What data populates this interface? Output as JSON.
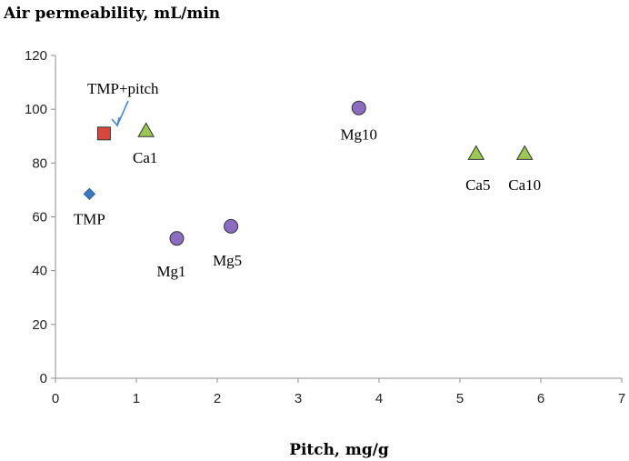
{
  "chart_data": {
    "type": "scatter",
    "title": "Air permeability, mL/min",
    "xlabel": "Pitch, mg/g",
    "ylabel": "Air permeability, mL/min",
    "xlim": [
      0,
      7
    ],
    "ylim": [
      0,
      120
    ],
    "xticks": [
      0,
      1,
      2,
      3,
      4,
      5,
      6,
      7
    ],
    "yticks": [
      0,
      20,
      40,
      60,
      80,
      100,
      120
    ],
    "grid": false,
    "colors": {
      "TMP": "#3a78c2",
      "TMP+pitch": "#d9463e",
      "Ca": "#9bc855",
      "Mg": "#8a6cc0"
    },
    "points": [
      {
        "name": "TMP",
        "label": "TMP",
        "series": "TMP",
        "marker": "diamond",
        "x": 0.42,
        "y": 68.5
      },
      {
        "name": "TMP+pitch",
        "label": "",
        "series": "TMP+pitch",
        "marker": "square",
        "x": 0.6,
        "y": 91
      },
      {
        "name": "Ca1",
        "label": "Ca1",
        "series": "Ca",
        "marker": "triangle",
        "x": 1.12,
        "y": 92
      },
      {
        "name": "Mg1",
        "label": "Mg1",
        "series": "Mg",
        "marker": "circle",
        "x": 1.5,
        "y": 52
      },
      {
        "name": "Mg5",
        "label": "Mg5",
        "series": "Mg",
        "marker": "circle",
        "x": 2.17,
        "y": 56.5
      },
      {
        "name": "Mg10",
        "label": "Mg10",
        "series": "Mg",
        "marker": "circle",
        "x": 3.75,
        "y": 100.5
      },
      {
        "name": "Ca5",
        "label": "Ca5",
        "series": "Ca",
        "marker": "triangle",
        "x": 5.2,
        "y": 83.5
      },
      {
        "name": "Ca10",
        "label": "Ca10",
        "series": "Ca",
        "marker": "triangle",
        "x": 5.8,
        "y": 83.5
      }
    ],
    "annotations": [
      {
        "text": "TMP+pitch",
        "points_to": "TMP+pitch"
      }
    ]
  }
}
